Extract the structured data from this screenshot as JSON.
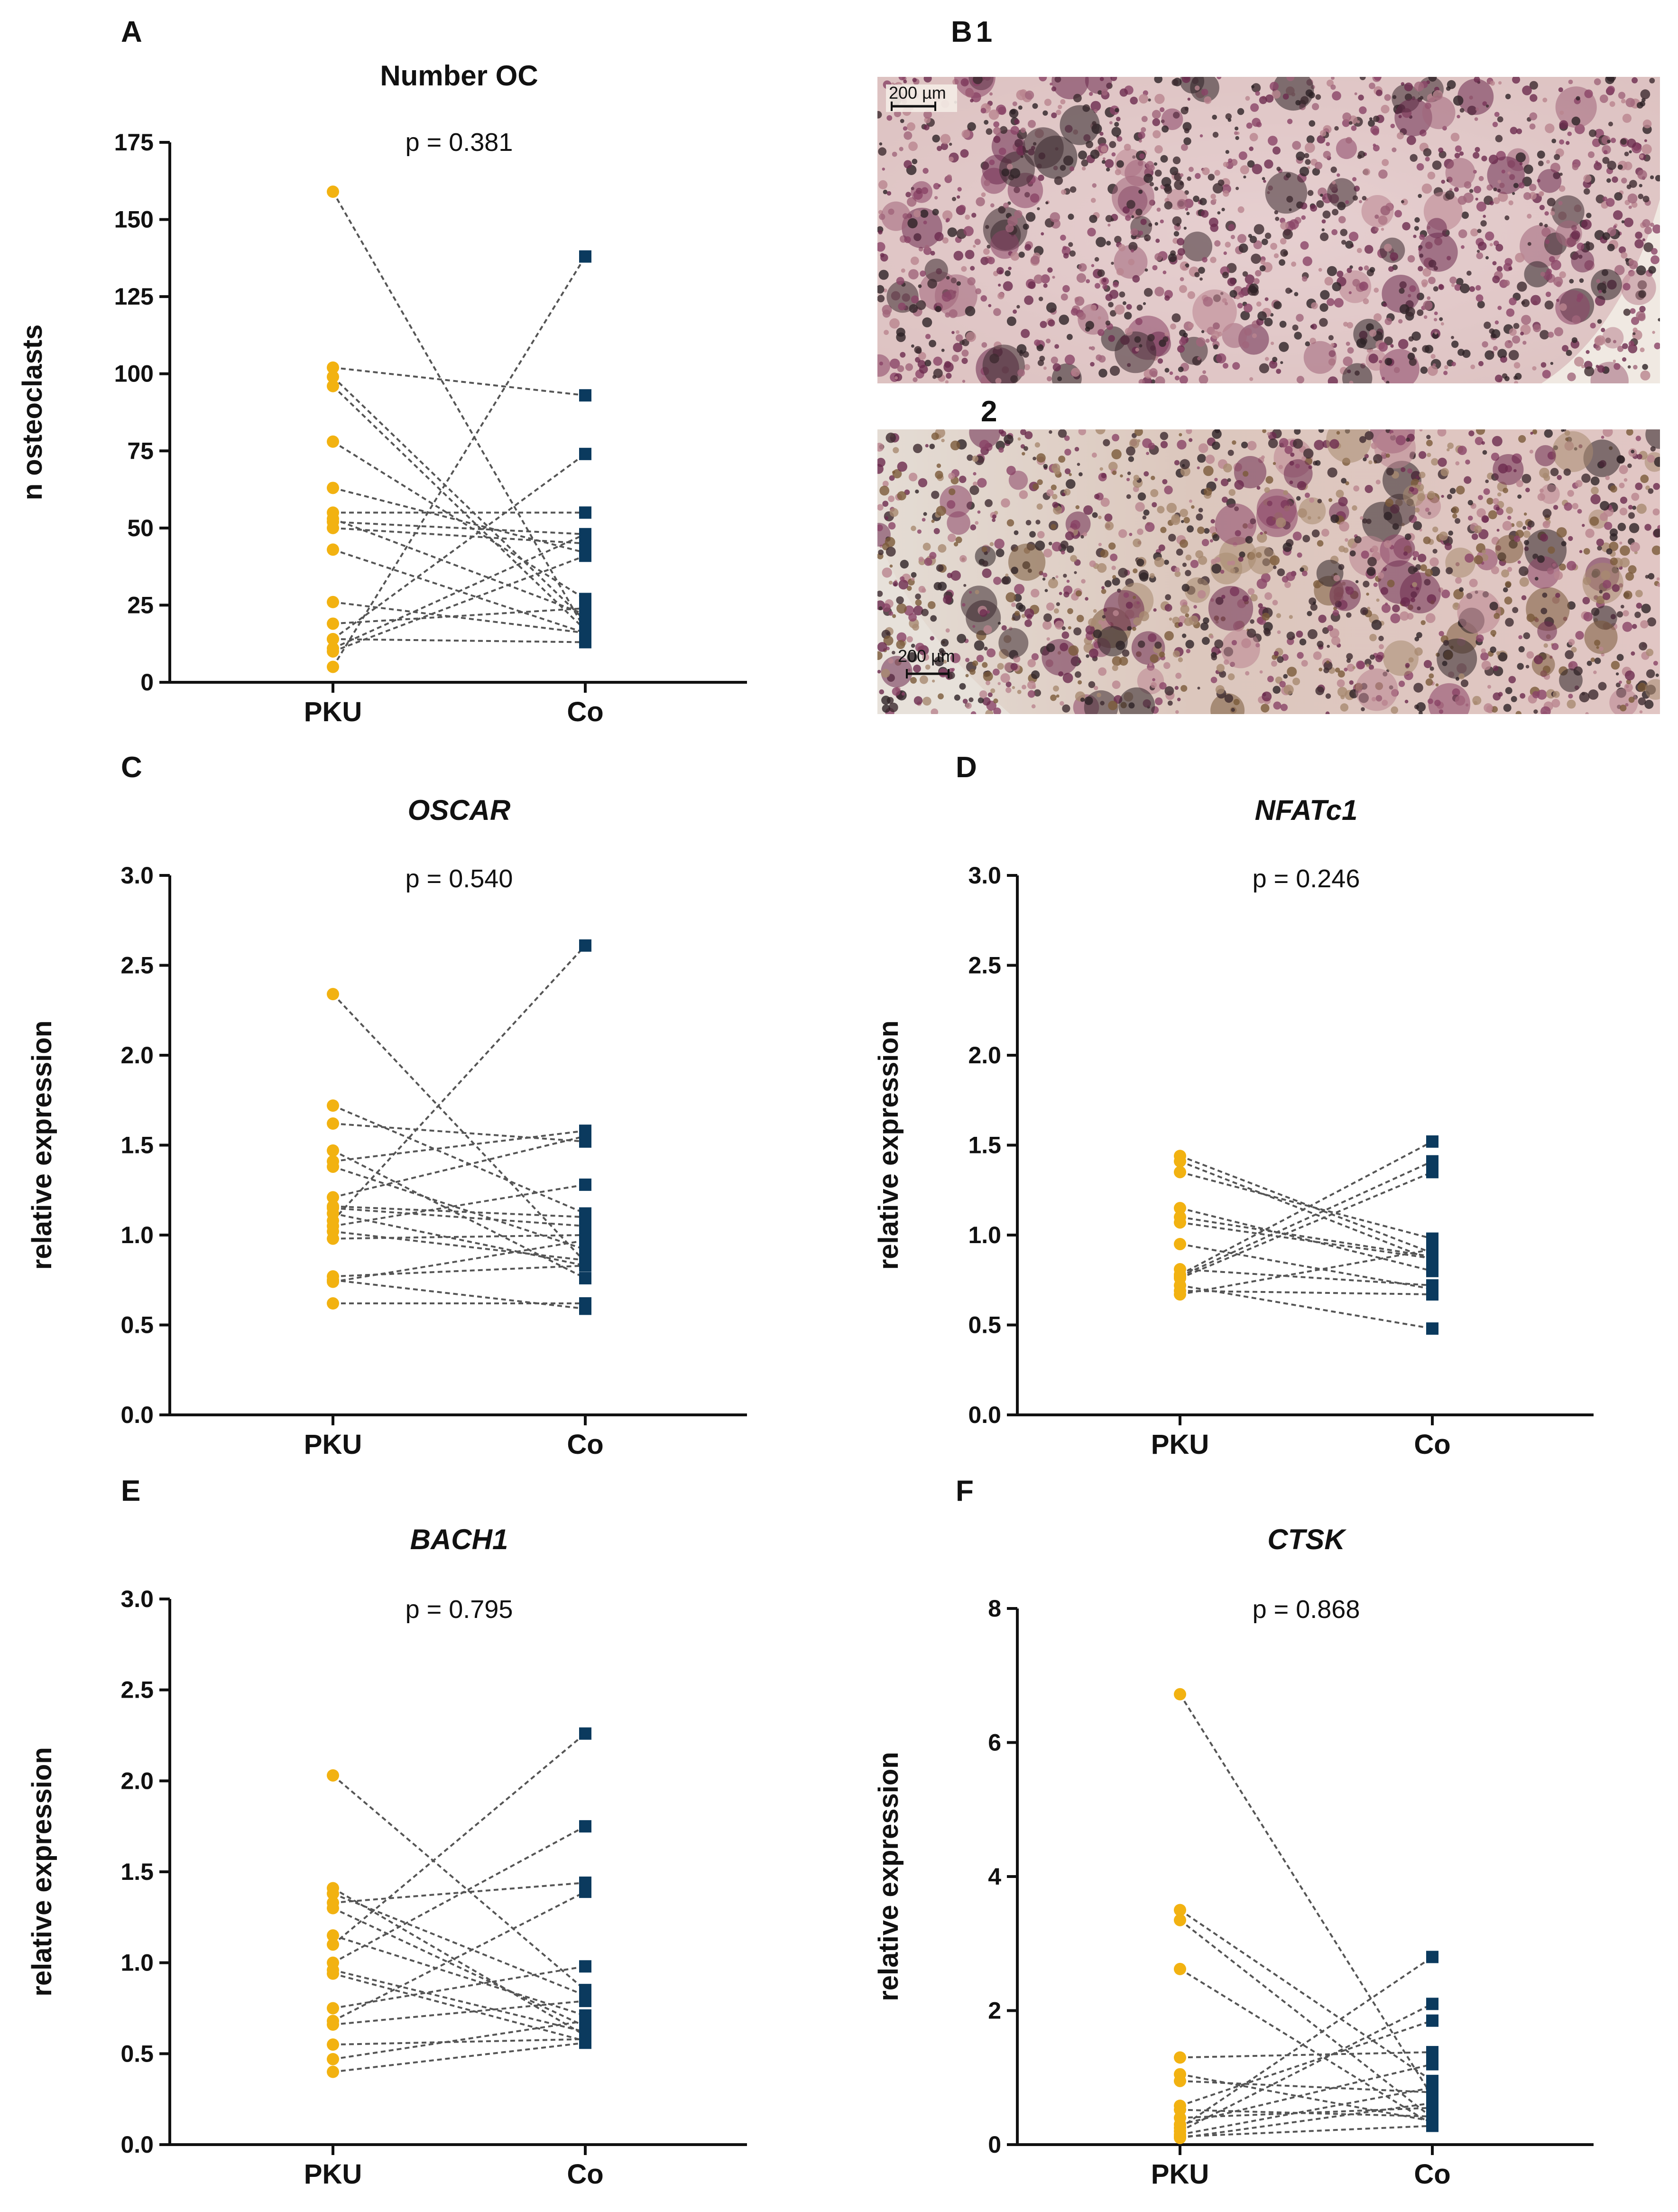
{
  "colors": {
    "pku": "#f2b211",
    "co": "#0b3a5e",
    "line": "#555555",
    "axis": "#111111"
  },
  "micrograph": {
    "panel_label": "B",
    "sub1_label": "1",
    "sub2_label": "2",
    "scale1": "200 µm",
    "scale2": "200 µm"
  },
  "chart_data": [
    {
      "id": "A",
      "type": "scatter",
      "title": "Number OC",
      "title_italic": false,
      "pvalue": "p = 0.381",
      "ylabel": "n osteoclasts",
      "categories": [
        "PKU",
        "Co"
      ],
      "ylim": [
        0,
        175
      ],
      "yticks": [
        0,
        25,
        50,
        75,
        100,
        125,
        150,
        175
      ],
      "tick_labels": [
        "0",
        "25",
        "50",
        "75",
        "100",
        "125",
        "150",
        "175"
      ],
      "pairs": [
        [
          159,
          17
        ],
        [
          102,
          93
        ],
        [
          99,
          20
        ],
        [
          96,
          17
        ],
        [
          78,
          27
        ],
        [
          63,
          42
        ],
        [
          55,
          55
        ],
        [
          53,
          22
        ],
        [
          52,
          48
        ],
        [
          50,
          45
        ],
        [
          43,
          16
        ],
        [
          26,
          16
        ],
        [
          19,
          24
        ],
        [
          14,
          74
        ],
        [
          11,
          48
        ],
        [
          10,
          41
        ],
        [
          5,
          138
        ],
        [
          14,
          13
        ]
      ]
    },
    {
      "id": "C",
      "type": "scatter",
      "title": "OSCAR",
      "title_italic": true,
      "pvalue": "p = 0.540",
      "ylabel": "relative expression",
      "categories": [
        "PKU",
        "Co"
      ],
      "ylim": [
        0,
        3
      ],
      "yticks": [
        0,
        0.5,
        1,
        1.5,
        2,
        2.5,
        3
      ],
      "tick_labels": [
        "0.0",
        "0.5",
        "1.0",
        "1.5",
        "2.0",
        "2.5",
        "3.0"
      ],
      "pairs": [
        [
          2.34,
          0.85
        ],
        [
          1.72,
          1.12
        ],
        [
          1.62,
          1.52
        ],
        [
          1.47,
          0.76
        ],
        [
          1.41,
          1.58
        ],
        [
          1.38,
          0.92
        ],
        [
          1.21,
          1.55
        ],
        [
          1.15,
          1.05
        ],
        [
          1.12,
          0.83
        ],
        [
          1.05,
          1.28
        ],
        [
          1.02,
          0.86
        ],
        [
          0.98,
          1.0
        ],
        [
          0.77,
          0.83
        ],
        [
          0.75,
          0.59
        ],
        [
          0.74,
          0.97
        ],
        [
          0.62,
          0.62
        ],
        [
          1.08,
          2.61
        ],
        [
          1.16,
          1.1
        ]
      ]
    },
    {
      "id": "D",
      "type": "scatter",
      "title": "NFATc1",
      "title_italic": true,
      "pvalue": "p = 0.246",
      "ylabel": "relative expression",
      "categories": [
        "PKU",
        "Co"
      ],
      "ylim": [
        0,
        3
      ],
      "yticks": [
        0,
        0.5,
        1,
        1.5,
        2,
        2.5,
        3
      ],
      "tick_labels": [
        "0.0",
        "0.5",
        "1.0",
        "1.5",
        "2.0",
        "2.5",
        "3.0"
      ],
      "pairs": [
        [
          1.44,
          0.9
        ],
        [
          1.41,
          0.86
        ],
        [
          1.35,
          0.98
        ],
        [
          1.15,
          0.8
        ],
        [
          1.1,
          0.88
        ],
        [
          1.07,
          0.87
        ],
        [
          0.95,
          0.7
        ],
        [
          0.81,
          0.72
        ],
        [
          0.78,
          1.52
        ],
        [
          0.77,
          1.41
        ],
        [
          0.76,
          1.35
        ],
        [
          0.72,
          0.48
        ],
        [
          0.69,
          0.67
        ],
        [
          0.67,
          0.92
        ]
      ]
    },
    {
      "id": "E",
      "type": "scatter",
      "title": "BACH1",
      "title_italic": true,
      "pvalue": "p = 0.795",
      "ylabel": "relative expression",
      "categories": [
        "PKU",
        "Co"
      ],
      "ylim": [
        0,
        3
      ],
      "yticks": [
        0,
        0.5,
        1,
        1.5,
        2,
        2.5,
        3
      ],
      "tick_labels": [
        "0.0",
        "0.5",
        "1.0",
        "1.5",
        "2.0",
        "2.5",
        "3.0"
      ],
      "pairs": [
        [
          2.03,
          0.85
        ],
        [
          1.41,
          0.6
        ],
        [
          1.38,
          0.82
        ],
        [
          1.33,
          1.44
        ],
        [
          1.3,
          0.65
        ],
        [
          1.15,
          0.71
        ],
        [
          1.1,
          2.26
        ],
        [
          1.0,
          1.75
        ],
        [
          0.96,
          0.62
        ],
        [
          0.94,
          0.57
        ],
        [
          0.75,
          0.98
        ],
        [
          0.68,
          1.39
        ],
        [
          0.66,
          0.79
        ],
        [
          0.55,
          0.58
        ],
        [
          0.47,
          0.68
        ],
        [
          0.4,
          0.56
        ]
      ]
    },
    {
      "id": "F",
      "type": "scatter",
      "title": "CTSK",
      "title_italic": true,
      "pvalue": "p = 0.868",
      "ylabel": "relative expression",
      "categories": [
        "PKU",
        "Co"
      ],
      "ylim": [
        0,
        8
      ],
      "yticks": [
        0,
        2,
        4,
        6,
        8
      ],
      "tick_labels": [
        "0",
        "2",
        "4",
        "6",
        "8"
      ],
      "pairs": [
        [
          6.72,
          0.72
        ],
        [
          3.5,
          0.95
        ],
        [
          3.35,
          0.4
        ],
        [
          2.62,
          0.3
        ],
        [
          1.3,
          1.38
        ],
        [
          1.05,
          0.35
        ],
        [
          0.95,
          0.78
        ],
        [
          0.58,
          1.85
        ],
        [
          0.52,
          0.42
        ],
        [
          0.4,
          0.55
        ],
        [
          0.3,
          1.2
        ],
        [
          0.25,
          2.8
        ],
        [
          0.2,
          2.1
        ],
        [
          0.15,
          0.85
        ],
        [
          0.12,
          0.28
        ],
        [
          0.1,
          0.62
        ]
      ]
    }
  ]
}
